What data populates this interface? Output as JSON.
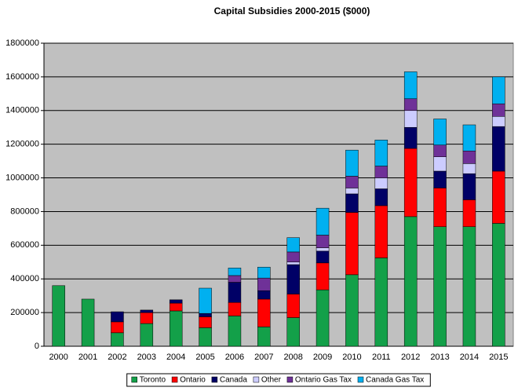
{
  "chart_data": {
    "type": "stacked-bar",
    "title": "Capital Subsidies 2000-2015 ($000)",
    "categories": [
      "2000",
      "2001",
      "2002",
      "2003",
      "2004",
      "2005",
      "2006",
      "2007",
      "2008",
      "2009",
      "2010",
      "2011",
      "2012",
      "2013",
      "2014",
      "2015"
    ],
    "series": [
      {
        "name": "Toronto",
        "color": "#13a049",
        "values": [
          360000,
          280000,
          80000,
          135000,
          210000,
          110000,
          180000,
          115000,
          170000,
          335000,
          425000,
          525000,
          770000,
          710000,
          710000,
          730000
        ]
      },
      {
        "name": "Ontario",
        "color": "#ff0000",
        "values": [
          0,
          0,
          65000,
          65000,
          46000,
          65000,
          80000,
          165000,
          140000,
          160000,
          370000,
          310000,
          405000,
          230000,
          160000,
          310000
        ]
      },
      {
        "name": "Canada",
        "color": "#000066",
        "values": [
          0,
          0,
          60000,
          15000,
          20000,
          20000,
          120000,
          50000,
          175000,
          70000,
          110000,
          100000,
          125000,
          100000,
          155000,
          265000
        ]
      },
      {
        "name": "Other",
        "color": "#ccccff",
        "values": [
          0,
          0,
          0,
          0,
          0,
          0,
          0,
          0,
          15000,
          20000,
          35000,
          65000,
          100000,
          85000,
          60000,
          60000
        ]
      },
      {
        "name": "Ontario Gas Tax",
        "color": "#6f3198",
        "values": [
          0,
          0,
          0,
          0,
          0,
          0,
          40000,
          75000,
          60000,
          75000,
          70000,
          70000,
          70000,
          70000,
          75000,
          75000
        ]
      },
      {
        "name": "Canada Gas Tax",
        "color": "#00b0f0",
        "values": [
          0,
          0,
          0,
          0,
          0,
          150000,
          45000,
          65000,
          85000,
          160000,
          155000,
          155000,
          160000,
          155000,
          155000,
          160000
        ]
      }
    ],
    "ylim": [
      0,
      1800000
    ],
    "yticks": [
      0,
      200000,
      400000,
      600000,
      800000,
      1000000,
      1200000,
      1400000,
      1600000,
      1800000
    ],
    "grid": true,
    "legend": "bottom"
  }
}
